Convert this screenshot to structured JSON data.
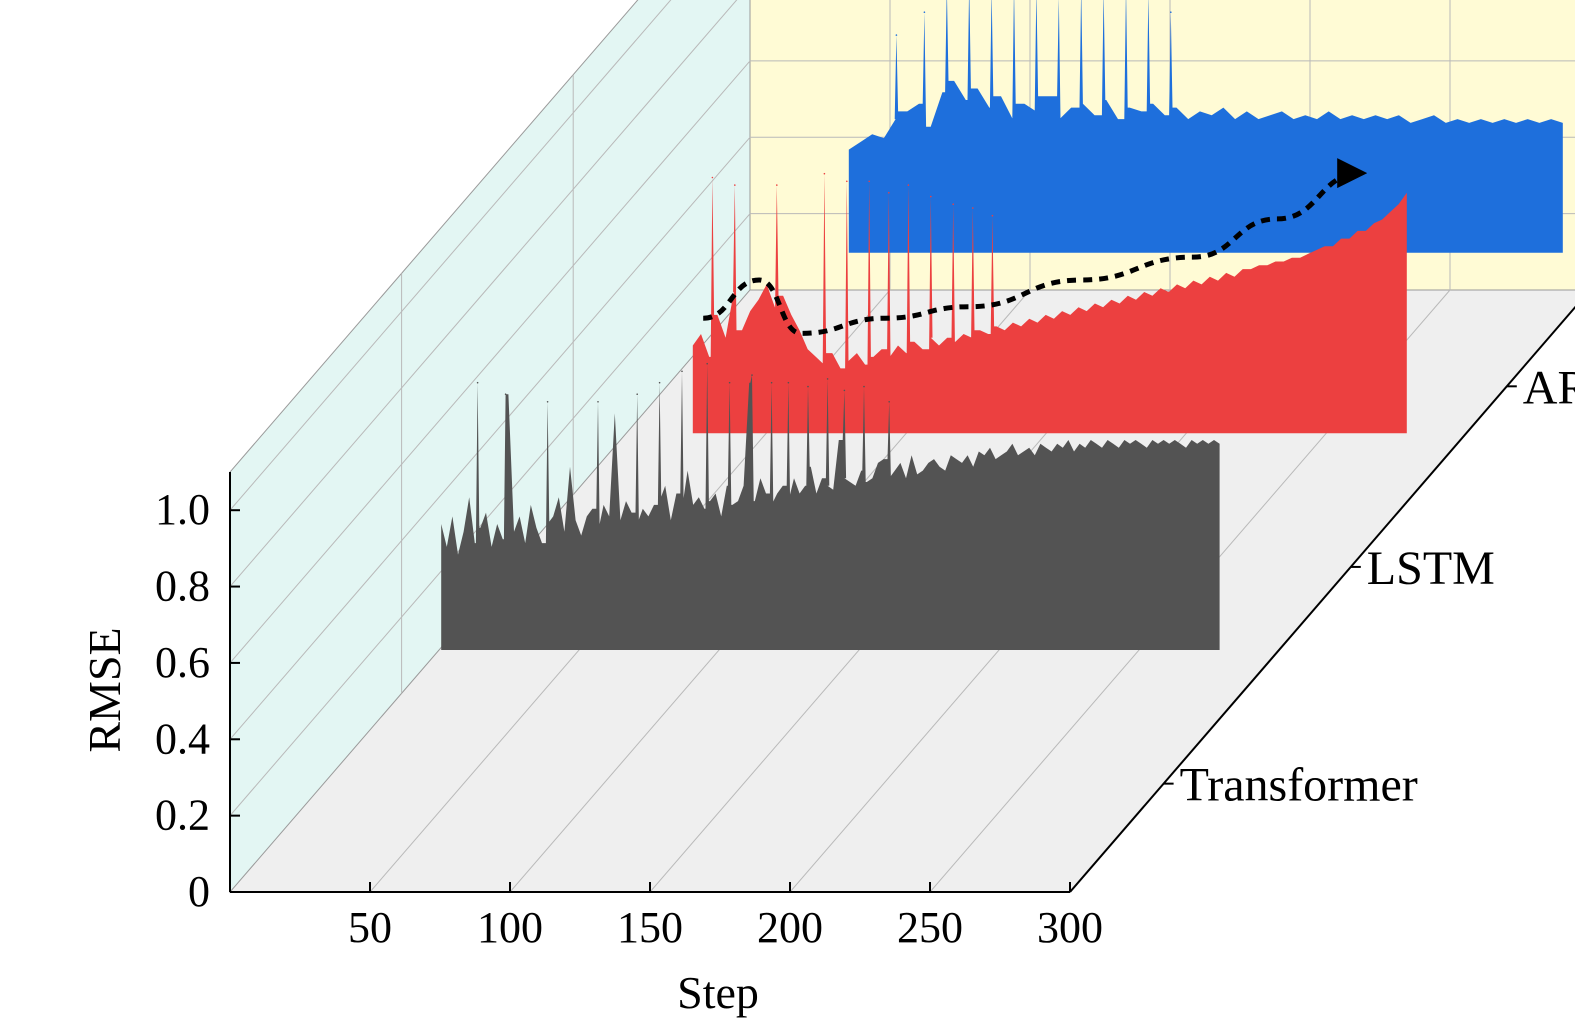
{
  "chart_data": {
    "type": "area",
    "projection": "3d-waterfall",
    "title": "",
    "xlabel": "Step",
    "ylabel": "RMSE",
    "x_range": [
      0,
      300
    ],
    "y_range": [
      0,
      1.1
    ],
    "x_ticks": [
      "50",
      "100",
      "150",
      "200",
      "250",
      "300"
    ],
    "y_ticks": [
      "0",
      "0.2",
      "0.4",
      "0.6",
      "0.8",
      "1.0"
    ],
    "grid": true,
    "colors": {
      "back_wall": "#fffbd5",
      "side_wall": "#e3f6f3",
      "floor": "#efefef",
      "grid": "#b9b9b9",
      "trend_line": "#000000"
    },
    "series": [
      {
        "name": "Transformer",
        "color": "#535353",
        "x_start": 42,
        "x_end": 320,
        "values": [
          0.68,
          0.62,
          0.7,
          0.6,
          0.66,
          0.75,
          0.63,
          0.67,
          0.71,
          0.62,
          0.68,
          0.64,
          1.02,
          0.66,
          0.7,
          0.63,
          0.73,
          0.67,
          0.63,
          0.68,
          0.7,
          0.75,
          0.66,
          0.83,
          0.69,
          0.65,
          0.7,
          0.72,
          0.66,
          0.73,
          0.7,
          0.97,
          0.69,
          0.74,
          0.71,
          0.68,
          0.72,
          0.7,
          0.73,
          0.74,
          0.78,
          0.69,
          0.76,
          0.72,
          0.82,
          0.73,
          0.75,
          0.72,
          0.74,
          0.76,
          0.7,
          0.78,
          0.73,
          0.74,
          0.78,
          1.05,
          0.74,
          0.8,
          0.76,
          0.73,
          0.76,
          0.78,
          0.74,
          0.8,
          0.76,
          0.78,
          0.83,
          0.76,
          0.8,
          0.78,
          0.77,
          0.9,
          0.8,
          0.79,
          0.78,
          0.82,
          0.79,
          0.8,
          0.84,
          0.85,
          0.8,
          0.82,
          0.84,
          0.8,
          0.86,
          0.81,
          0.82,
          0.84,
          0.85,
          0.83,
          0.82,
          0.86,
          0.85,
          0.84,
          0.86,
          0.83,
          0.87,
          0.86,
          0.88,
          0.85,
          0.86,
          0.87,
          0.89,
          0.86,
          0.87,
          0.88,
          0.86,
          0.89,
          0.88,
          0.87,
          0.89,
          0.88,
          0.9,
          0.87,
          0.89,
          0.88,
          0.9,
          0.89,
          0.88,
          0.9,
          0.89,
          0.88,
          0.9,
          0.89,
          0.9,
          0.89,
          0.88,
          0.9,
          0.89,
          0.9,
          0.89,
          0.9,
          0.89,
          0.88,
          0.9,
          0.89,
          0.9,
          0.89,
          0.9,
          0.89
        ],
        "peaks": [
          {
            "step": 55,
            "value": 1.05
          },
          {
            "step": 65,
            "value": 1.02
          },
          {
            "step": 80,
            "value": 1.0
          },
          {
            "step": 98,
            "value": 1.0
          },
          {
            "step": 112,
            "value": 1.02
          },
          {
            "step": 120,
            "value": 1.05
          },
          {
            "step": 128,
            "value": 1.08
          },
          {
            "step": 137,
            "value": 1.1
          },
          {
            "step": 145,
            "value": 1.05
          },
          {
            "step": 153,
            "value": 1.07
          },
          {
            "step": 160,
            "value": 1.05
          },
          {
            "step": 166,
            "value": 1.05
          },
          {
            "step": 173,
            "value": 1.04
          },
          {
            "step": 180,
            "value": 1.06
          },
          {
            "step": 186,
            "value": 1.03
          },
          {
            "step": 193,
            "value": 1.04
          },
          {
            "step": 202,
            "value": 1.0
          }
        ]
      },
      {
        "name": "LSTM",
        "color": "#ec4040",
        "x_start": 65,
        "x_end": 320,
        "values": [
          0.58,
          0.61,
          0.55,
          0.66,
          0.6,
          0.72,
          0.62,
          0.67,
          0.7,
          0.74,
          0.68,
          0.71,
          0.66,
          0.62,
          0.57,
          0.55,
          0.53,
          0.56,
          0.52,
          0.54,
          0.56,
          0.53,
          0.55,
          0.57,
          0.55,
          0.58,
          0.56,
          0.59,
          0.57,
          0.6,
          0.58,
          0.6,
          0.59,
          0.61,
          0.6,
          0.62,
          0.61,
          0.63,
          0.62,
          0.64,
          0.63,
          0.65,
          0.64,
          0.66,
          0.65,
          0.67,
          0.66,
          0.68,
          0.67,
          0.69,
          0.68,
          0.7,
          0.69,
          0.71,
          0.7,
          0.72,
          0.71,
          0.73,
          0.72,
          0.74,
          0.73,
          0.75,
          0.74,
          0.76,
          0.75,
          0.77,
          0.76,
          0.78,
          0.78,
          0.79,
          0.79,
          0.8,
          0.8,
          0.81,
          0.81,
          0.82,
          0.83,
          0.84,
          0.84,
          0.86,
          0.86,
          0.88,
          0.88,
          0.9,
          0.91,
          0.93,
          0.95,
          0.98
        ],
        "peaks": [
          {
            "step": 72,
            "value": 1.02
          },
          {
            "step": 80,
            "value": 1.0
          },
          {
            "step": 95,
            "value": 1.0
          },
          {
            "step": 112,
            "value": 1.03
          },
          {
            "step": 120,
            "value": 1.01
          },
          {
            "step": 128,
            "value": 1.01
          },
          {
            "step": 135,
            "value": 0.98
          },
          {
            "step": 142,
            "value": 1.0
          },
          {
            "step": 150,
            "value": 0.97
          },
          {
            "step": 158,
            "value": 0.95
          },
          {
            "step": 165,
            "value": 0.94
          },
          {
            "step": 172,
            "value": 0.92
          }
        ]
      },
      {
        "name": "ARIMA",
        "color": "#1e6fdc",
        "x_start": 65,
        "x_end": 320,
        "values": [
          0.62,
          0.64,
          0.66,
          0.65,
          0.7,
          0.72,
          0.74,
          0.68,
          0.77,
          0.8,
          0.75,
          0.78,
          0.73,
          0.76,
          0.7,
          0.74,
          0.72,
          0.76,
          0.7,
          0.73,
          0.74,
          0.71,
          0.75,
          0.7,
          0.73,
          0.72,
          0.74,
          0.71,
          0.73,
          0.7,
          0.72,
          0.71,
          0.73,
          0.7,
          0.72,
          0.7,
          0.71,
          0.72,
          0.7,
          0.71,
          0.7,
          0.72,
          0.7,
          0.71,
          0.7,
          0.71,
          0.7,
          0.71,
          0.69,
          0.7,
          0.71,
          0.69,
          0.7,
          0.69,
          0.7,
          0.69,
          0.7,
          0.69,
          0.7,
          0.69,
          0.7,
          0.69
        ],
        "peaks": [
          {
            "step": 82,
            "value": 0.92
          },
          {
            "step": 92,
            "value": 0.98
          },
          {
            "step": 100,
            "value": 1.05
          },
          {
            "step": 108,
            "value": 1.06
          },
          {
            "step": 116,
            "value": 1.04
          },
          {
            "step": 124,
            "value": 1.05
          },
          {
            "step": 132,
            "value": 1.04
          },
          {
            "step": 140,
            "value": 1.02
          },
          {
            "step": 148,
            "value": 1.05
          },
          {
            "step": 156,
            "value": 1.04
          },
          {
            "step": 164,
            "value": 1.05
          },
          {
            "step": 172,
            "value": 1.03
          },
          {
            "step": 180,
            "value": 0.98
          }
        ]
      }
    ],
    "trend": {
      "series": "LSTM",
      "style": "dashed-arrow",
      "points": [
        [
          65,
          0.62
        ],
        [
          85,
          0.72
        ],
        [
          100,
          0.58
        ],
        [
          130,
          0.62
        ],
        [
          160,
          0.65
        ],
        [
          200,
          0.72
        ],
        [
          240,
          0.78
        ],
        [
          270,
          0.88
        ],
        [
          300,
          1.0
        ]
      ]
    }
  }
}
